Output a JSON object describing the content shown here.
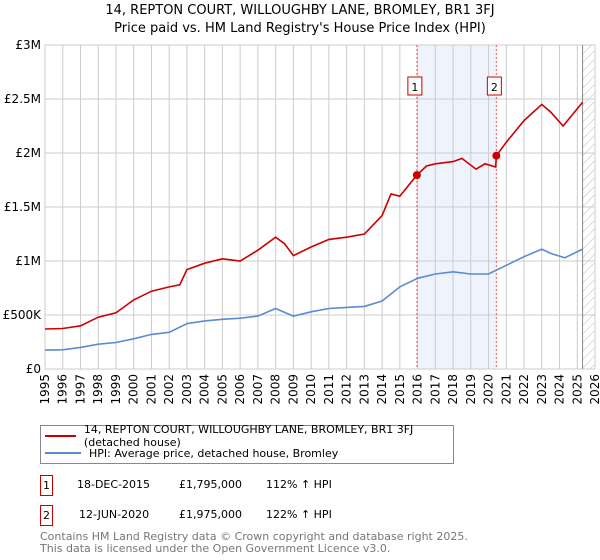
{
  "chart_data": {
    "type": "line",
    "title": "14, REPTON COURT, WILLOUGHBY LANE, BROMLEY, BR1 3FJ",
    "subtitle": "Price paid vs. HM Land Registry's House Price Index (HPI)",
    "xlim": [
      1995,
      2026
    ],
    "ylim": [
      0,
      3000000
    ],
    "x_ticks": [
      "1995",
      "1996",
      "1997",
      "1998",
      "1999",
      "2000",
      "2001",
      "2002",
      "2003",
      "2004",
      "2005",
      "2006",
      "2007",
      "2008",
      "2009",
      "2010",
      "2011",
      "2012",
      "2013",
      "2014",
      "2015",
      "2016",
      "2017",
      "2018",
      "2019",
      "2020",
      "2021",
      "2022",
      "2023",
      "2024",
      "2025",
      "2026"
    ],
    "y_ticks": [
      {
        "v": 0,
        "label": "£0"
      },
      {
        "v": 500000,
        "label": "£500K"
      },
      {
        "v": 1000000,
        "label": "£1M"
      },
      {
        "v": 1500000,
        "label": "£1.5M"
      },
      {
        "v": 2000000,
        "label": "£2M"
      },
      {
        "v": 2500000,
        "label": "£2.5M"
      },
      {
        "v": 3000000,
        "label": "£3M"
      }
    ],
    "grid": true,
    "shaded_period": [
      2015.96,
      2020.44
    ],
    "hatched_from": 2025.3,
    "series": [
      {
        "name": "14, REPTON COURT, WILLOUGHBY LANE, BROMLEY, BR1 3FJ (detached house)",
        "color": "#cc0000",
        "x": [
          1995,
          1996,
          1997,
          1998,
          1999,
          2000,
          2001,
          2002,
          2002.6,
          2003,
          2004,
          2005,
          2006,
          2007,
          2008,
          2008.5,
          2009,
          2010,
          2011,
          2012,
          2013,
          2014,
          2014.5,
          2015,
          2015.96,
          2016.5,
          2017,
          2018,
          2018.5,
          2019.3,
          2019.8,
          2020.4,
          2020.44,
          2021,
          2022,
          2023,
          2023.5,
          2024.2,
          2024.7,
          2025.3
        ],
        "y": [
          370000,
          375000,
          400000,
          480000,
          520000,
          640000,
          720000,
          760000,
          780000,
          920000,
          980000,
          1020000,
          1000000,
          1100000,
          1220000,
          1160000,
          1050000,
          1130000,
          1200000,
          1220000,
          1250000,
          1420000,
          1620000,
          1600000,
          1795000,
          1880000,
          1900000,
          1920000,
          1950000,
          1850000,
          1900000,
          1870000,
          1975000,
          2100000,
          2300000,
          2450000,
          2380000,
          2250000,
          2350000,
          2470000
        ]
      },
      {
        "name": "HPI: Average price, detached house, Bromley",
        "color": "#5b8bd0",
        "x": [
          1995,
          1996,
          1997,
          1998,
          1999,
          2000,
          2001,
          2002,
          2003,
          2004,
          2005,
          2006,
          2007,
          2008,
          2009,
          2010,
          2011,
          2012,
          2013,
          2014,
          2015,
          2016,
          2017,
          2018,
          2019,
          2020,
          2021,
          2022,
          2023,
          2023.5,
          2024.3,
          2025.3
        ],
        "y": [
          175000,
          178000,
          200000,
          230000,
          245000,
          280000,
          320000,
          340000,
          420000,
          445000,
          460000,
          470000,
          490000,
          560000,
          490000,
          530000,
          560000,
          570000,
          580000,
          630000,
          760000,
          840000,
          880000,
          900000,
          880000,
          880000,
          960000,
          1040000,
          1110000,
          1070000,
          1030000,
          1110000
        ]
      }
    ],
    "markers": [
      {
        "label": "1",
        "x": 2015.96,
        "y": 1795000
      },
      {
        "label": "2",
        "x": 2020.44,
        "y": 1975000
      }
    ]
  },
  "legend": {
    "item1": "14, REPTON COURT, WILLOUGHBY LANE, BROMLEY, BR1 3FJ (detached house)",
    "item2": "HPI: Average price, detached house, Bromley"
  },
  "transactions": [
    {
      "id": "1",
      "date": "18-DEC-2015",
      "price": "£1,795,000",
      "hpi": "112% ↑ HPI"
    },
    {
      "id": "2",
      "date": "12-JUN-2020",
      "price": "£1,975,000",
      "hpi": "122% ↑ HPI"
    }
  ],
  "footer": {
    "line1": "Contains HM Land Registry data © Crown copyright and database right 2025.",
    "line2": "This data is licensed under the Open Government Licence v3.0."
  }
}
